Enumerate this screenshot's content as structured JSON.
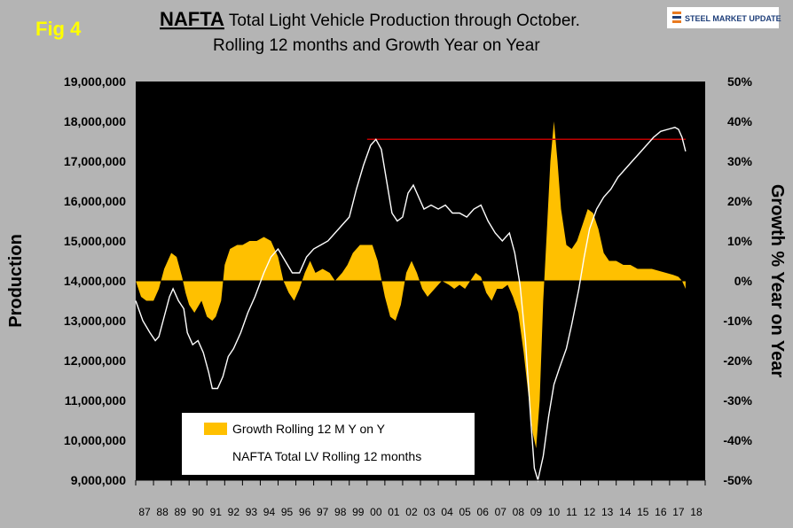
{
  "figure": {
    "fig_label": "Fig 4",
    "title_bold": "NAFTA",
    "title_line1": " Total Light Vehicle Production through October.",
    "title_line2": "Rolling 12 months and Growth Year on Year",
    "logo_text": "STEEL MARKET UPDATE"
  },
  "colors": {
    "background": "#b4b4b4",
    "plot_area": "#000000",
    "growth_fill": "#ffc000",
    "production_line": "#ffffff",
    "reference_line": "#c00000"
  },
  "chart_data": {
    "type": "area",
    "xlabel": "",
    "ylabel": "Production",
    "y2label": "Growth % Year on Year",
    "ylim": [
      9000000,
      19000000
    ],
    "y2lim": [
      -50,
      50
    ],
    "y_ticks": [
      "9,000,000",
      "10,000,000",
      "11,000,000",
      "12,000,000",
      "13,000,000",
      "14,000,000",
      "15,000,000",
      "16,000,000",
      "17,000,000",
      "18,000,000",
      "19,000,000"
    ],
    "y2_ticks": [
      "-50%",
      "-40%",
      "-30%",
      "-20%",
      "-10%",
      "0%",
      "10%",
      "20%",
      "30%",
      "40%",
      "50%"
    ],
    "x_categories": [
      "87",
      "88",
      "89",
      "90",
      "91",
      "92",
      "93",
      "94",
      "95",
      "96",
      "97",
      "98",
      "99",
      "00",
      "01",
      "02",
      "03",
      "04",
      "05",
      "06",
      "07",
      "08",
      "09",
      "10",
      "11",
      "12",
      "13",
      "14",
      "15",
      "16",
      "17",
      "18"
    ],
    "legend": {
      "placement": "bottom-left",
      "entries": [
        "Growth Rolling 12 M Y on Y",
        "NAFTA Total LV Rolling 12 months"
      ]
    },
    "reference_line": {
      "value": 17550000,
      "x_from": 2000.0,
      "x_to": 2017.9
    },
    "series": [
      {
        "name": "NAFTA Total LV Rolling 12 months",
        "axis": "left",
        "kind": "line",
        "points": [
          [
            1987.0,
            13500000
          ],
          [
            1987.4,
            13000000
          ],
          [
            1987.8,
            12700000
          ],
          [
            1988.1,
            12500000
          ],
          [
            1988.3,
            12600000
          ],
          [
            1988.6,
            13100000
          ],
          [
            1988.9,
            13600000
          ],
          [
            1989.1,
            13800000
          ],
          [
            1989.4,
            13500000
          ],
          [
            1989.7,
            13300000
          ],
          [
            1989.9,
            12700000
          ],
          [
            1990.2,
            12400000
          ],
          [
            1990.5,
            12500000
          ],
          [
            1990.8,
            12200000
          ],
          [
            1991.1,
            11700000
          ],
          [
            1991.3,
            11300000
          ],
          [
            1991.6,
            11300000
          ],
          [
            1991.9,
            11600000
          ],
          [
            1992.2,
            12100000
          ],
          [
            1992.5,
            12300000
          ],
          [
            1992.9,
            12700000
          ],
          [
            1993.3,
            13200000
          ],
          [
            1993.7,
            13600000
          ],
          [
            1994.2,
            14200000
          ],
          [
            1994.6,
            14600000
          ],
          [
            1995.0,
            14800000
          ],
          [
            1995.4,
            14500000
          ],
          [
            1995.8,
            14200000
          ],
          [
            1996.2,
            14200000
          ],
          [
            1996.6,
            14600000
          ],
          [
            1997.0,
            14800000
          ],
          [
            1997.4,
            14900000
          ],
          [
            1997.8,
            15000000
          ],
          [
            1998.2,
            15200000
          ],
          [
            1998.6,
            15400000
          ],
          [
            1999.0,
            15600000
          ],
          [
            1999.4,
            16300000
          ],
          [
            1999.8,
            16900000
          ],
          [
            2000.2,
            17400000
          ],
          [
            2000.5,
            17550000
          ],
          [
            2000.8,
            17300000
          ],
          [
            2001.1,
            16500000
          ],
          [
            2001.4,
            15700000
          ],
          [
            2001.7,
            15500000
          ],
          [
            2002.0,
            15600000
          ],
          [
            2002.3,
            16200000
          ],
          [
            2002.6,
            16400000
          ],
          [
            2002.9,
            16100000
          ],
          [
            2003.2,
            15800000
          ],
          [
            2003.6,
            15900000
          ],
          [
            2004.0,
            15800000
          ],
          [
            2004.4,
            15900000
          ],
          [
            2004.8,
            15700000
          ],
          [
            2005.2,
            15700000
          ],
          [
            2005.6,
            15600000
          ],
          [
            2006.0,
            15800000
          ],
          [
            2006.4,
            15900000
          ],
          [
            2006.8,
            15500000
          ],
          [
            2007.2,
            15200000
          ],
          [
            2007.6,
            15000000
          ],
          [
            2008.0,
            15200000
          ],
          [
            2008.3,
            14700000
          ],
          [
            2008.6,
            13900000
          ],
          [
            2008.9,
            12500000
          ],
          [
            2009.2,
            10500000
          ],
          [
            2009.4,
            9300000
          ],
          [
            2009.6,
            9000000
          ],
          [
            2009.9,
            9600000
          ],
          [
            2010.2,
            10600000
          ],
          [
            2010.5,
            11400000
          ],
          [
            2010.8,
            11800000
          ],
          [
            2011.2,
            12300000
          ],
          [
            2011.5,
            12900000
          ],
          [
            2011.9,
            13800000
          ],
          [
            2012.2,
            14600000
          ],
          [
            2012.5,
            15300000
          ],
          [
            2012.9,
            15800000
          ],
          [
            2013.3,
            16100000
          ],
          [
            2013.7,
            16300000
          ],
          [
            2014.1,
            16600000
          ],
          [
            2014.5,
            16800000
          ],
          [
            2014.9,
            17000000
          ],
          [
            2015.3,
            17200000
          ],
          [
            2015.7,
            17400000
          ],
          [
            2016.1,
            17600000
          ],
          [
            2016.5,
            17750000
          ],
          [
            2016.9,
            17800000
          ],
          [
            2017.3,
            17850000
          ],
          [
            2017.5,
            17800000
          ],
          [
            2017.7,
            17600000
          ],
          [
            2017.9,
            17250000
          ]
        ]
      },
      {
        "name": "Growth Rolling 12 M Y on Y",
        "axis": "right",
        "kind": "area",
        "points": [
          [
            1987.0,
            0
          ],
          [
            1987.3,
            -4
          ],
          [
            1987.6,
            -5
          ],
          [
            1988.0,
            -5
          ],
          [
            1988.3,
            -2
          ],
          [
            1988.6,
            3
          ],
          [
            1989.0,
            7
          ],
          [
            1989.3,
            6
          ],
          [
            1989.6,
            1
          ],
          [
            1989.8,
            -3
          ],
          [
            1990.0,
            -6
          ],
          [
            1990.3,
            -8
          ],
          [
            1990.7,
            -5
          ],
          [
            1991.0,
            -9
          ],
          [
            1991.3,
            -10
          ],
          [
            1991.5,
            -9
          ],
          [
            1991.8,
            -5
          ],
          [
            1992.0,
            4
          ],
          [
            1992.3,
            8
          ],
          [
            1992.7,
            9
          ],
          [
            1993.0,
            9
          ],
          [
            1993.4,
            10
          ],
          [
            1993.8,
            10
          ],
          [
            1994.2,
            11
          ],
          [
            1994.6,
            10
          ],
          [
            1995.0,
            6
          ],
          [
            1995.3,
            0
          ],
          [
            1995.6,
            -3
          ],
          [
            1995.9,
            -5
          ],
          [
            1996.2,
            -2
          ],
          [
            1996.5,
            2
          ],
          [
            1996.8,
            5
          ],
          [
            1997.1,
            2
          ],
          [
            1997.5,
            3
          ],
          [
            1997.9,
            2
          ],
          [
            1998.2,
            0
          ],
          [
            1998.6,
            2
          ],
          [
            1998.9,
            4
          ],
          [
            1999.2,
            7
          ],
          [
            1999.6,
            9
          ],
          [
            2000.0,
            9
          ],
          [
            2000.3,
            9
          ],
          [
            2000.6,
            5
          ],
          [
            2001.0,
            -4
          ],
          [
            2001.3,
            -9
          ],
          [
            2001.6,
            -10
          ],
          [
            2001.9,
            -6
          ],
          [
            2002.2,
            2
          ],
          [
            2002.5,
            5
          ],
          [
            2002.8,
            2
          ],
          [
            2003.1,
            -2
          ],
          [
            2003.4,
            -4
          ],
          [
            2003.8,
            -2
          ],
          [
            2004.2,
            0
          ],
          [
            2004.6,
            -1
          ],
          [
            2004.9,
            -2
          ],
          [
            2005.2,
            -1
          ],
          [
            2005.5,
            -2
          ],
          [
            2005.8,
            0
          ],
          [
            2006.1,
            2
          ],
          [
            2006.4,
            1
          ],
          [
            2006.7,
            -3
          ],
          [
            2007.0,
            -5
          ],
          [
            2007.3,
            -2
          ],
          [
            2007.6,
            -2
          ],
          [
            2007.9,
            -1
          ],
          [
            2008.2,
            -4
          ],
          [
            2008.5,
            -8
          ],
          [
            2008.8,
            -18
          ],
          [
            2009.1,
            -30
          ],
          [
            2009.3,
            -38
          ],
          [
            2009.5,
            -42
          ],
          [
            2009.7,
            -30
          ],
          [
            2009.9,
            -5
          ],
          [
            2010.1,
            12
          ],
          [
            2010.3,
            30
          ],
          [
            2010.5,
            40
          ],
          [
            2010.7,
            30
          ],
          [
            2010.9,
            18
          ],
          [
            2011.2,
            9
          ],
          [
            2011.5,
            8
          ],
          [
            2011.8,
            10
          ],
          [
            2012.1,
            14
          ],
          [
            2012.4,
            18
          ],
          [
            2012.7,
            17
          ],
          [
            2013.0,
            13
          ],
          [
            2013.3,
            7
          ],
          [
            2013.6,
            5
          ],
          [
            2014.0,
            5
          ],
          [
            2014.4,
            4
          ],
          [
            2014.8,
            4
          ],
          [
            2015.2,
            3
          ],
          [
            2015.6,
            3
          ],
          [
            2016.0,
            3
          ],
          [
            2016.4,
            2.5
          ],
          [
            2016.8,
            2
          ],
          [
            2017.2,
            1.5
          ],
          [
            2017.5,
            1
          ],
          [
            2017.7,
            0
          ],
          [
            2017.9,
            -2
          ]
        ]
      }
    ]
  }
}
